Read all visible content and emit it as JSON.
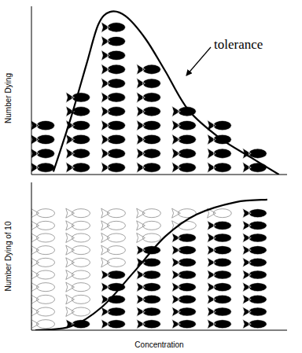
{
  "chart_data": [
    {
      "type": "pictograph",
      "y_label": "Number Dying",
      "x": [
        1,
        2,
        3,
        4,
        5,
        6,
        7
      ],
      "values": [
        4,
        6,
        11,
        8,
        5,
        4,
        2
      ],
      "xlim": [
        0.67,
        7.9
      ],
      "ylim": [
        0,
        12
      ],
      "tick_labels": false,
      "color": "#000000",
      "curve": {
        "name": "tolerance",
        "x": [
          1.29,
          1.78,
          2.23,
          2.56,
          2.89,
          3.33,
          3.89,
          4.45,
          5.11,
          6.0,
          6.89,
          7.67
        ],
        "values": [
          0.2,
          4.0,
          7.9,
          10.7,
          11.6,
          11.3,
          9.7,
          7.4,
          4.6,
          2.6,
          1.2,
          0
        ]
      }
    },
    {
      "type": "pictograph",
      "y_label": "Number Dying of 10",
      "x_label": "Concentration",
      "x": [
        1,
        2,
        3,
        4,
        5,
        6,
        7
      ],
      "values": [
        0,
        1,
        5,
        7,
        8,
        9,
        10
      ],
      "totals": [
        10,
        10,
        10,
        10,
        10,
        10,
        10
      ],
      "xlim": [
        0.67,
        7.9
      ],
      "ylim": [
        0,
        12
      ],
      "tick_labels": false,
      "color": "#000000",
      "curve": {
        "x": [
          0.78,
          1.78,
          2.67,
          3.56,
          4.45,
          5.34,
          6.45,
          7.34
        ],
        "values": [
          0,
          0.3,
          1.9,
          4.7,
          7.6,
          9.4,
          10.4,
          10.6
        ]
      }
    }
  ]
}
